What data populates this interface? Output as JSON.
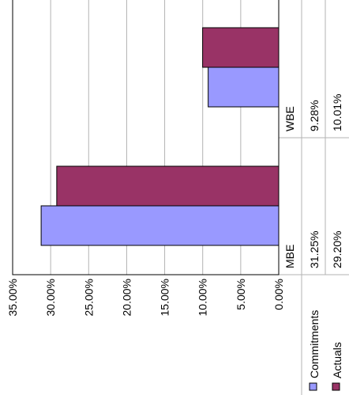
{
  "chart_data": {
    "type": "bar",
    "orientation": "horizontal",
    "rotated": true,
    "categories": [
      "MBE",
      "WBE"
    ],
    "series": [
      {
        "name": "Commitments",
        "values": [
          31.25,
          9.28
        ],
        "value_labels": [
          "31.25%",
          "9.28%"
        ],
        "color": "#9999ff"
      },
      {
        "name": "Actuals",
        "values": [
          29.2,
          10.01
        ],
        "value_labels": [
          "29.20%",
          "10.01%"
        ],
        "color": "#993366"
      }
    ],
    "value_axis": {
      "range": [
        0,
        35
      ],
      "ticks": [
        0,
        5,
        10,
        15,
        20,
        25,
        30,
        35
      ],
      "tick_labels": [
        "0.00%",
        "5.00%",
        "10.00%",
        "15.00%",
        "20.00%",
        "25.00%",
        "30.00%",
        "35.00%"
      ]
    },
    "grid": true,
    "legend": "bottom-left",
    "data_table": true,
    "title": "",
    "xlabel": "",
    "ylabel": ""
  }
}
